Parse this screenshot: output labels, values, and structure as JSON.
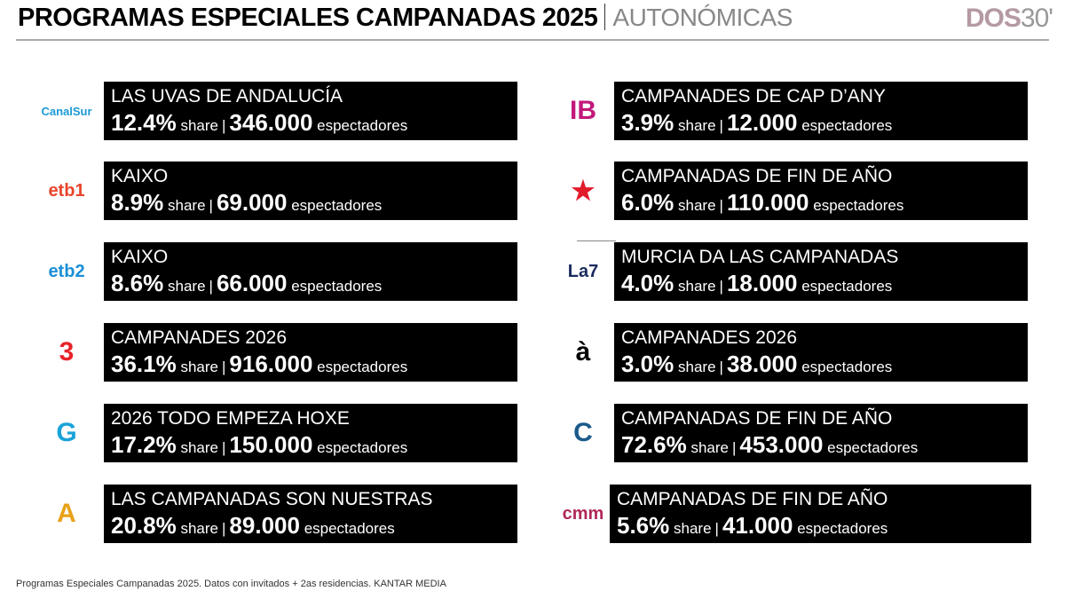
{
  "header": {
    "title": "PROGRAMAS ESPECIALES CAMPANADAS 2025",
    "subtitle": "AUTONÓMICAS",
    "brand_a": "DOS",
    "brand_b": "30'"
  },
  "labels": {
    "share": "share",
    "separator": "|",
    "viewers": "espectadores"
  },
  "left": [
    {
      "logo": "CanalSur",
      "logo_color": "#1a9ad6",
      "program": "LAS UVAS DE ANDALUCÍA",
      "share": "12.4%",
      "viewers": "346.000"
    },
    {
      "logo": "etb1",
      "logo_color": "#e8452c",
      "program": "KAIXO",
      "share": "8.9%",
      "viewers": "69.000"
    },
    {
      "logo": "etb2",
      "logo_color": "#1a8fd6",
      "program": "KAIXO",
      "share": "8.6%",
      "viewers": "66.000"
    },
    {
      "logo": "3",
      "logo_color": "#e8232a",
      "program": "CAMPANADES 2026",
      "share": "36.1%",
      "viewers": "916.000"
    },
    {
      "logo": "G",
      "logo_color": "#1aa3d9",
      "program": "2026 TODO EMPEZA HOXE",
      "share": "17.2%",
      "viewers": "150.000"
    },
    {
      "logo": "A",
      "logo_color": "#e8a21a",
      "program": "LAS CAMPANADAS SON NUESTRAS",
      "share": "20.8%",
      "viewers": "89.000"
    }
  ],
  "right": [
    {
      "logo": "IB",
      "logo_color": "#c2187a",
      "program": "CAMPANADES DE CAP D’ANY",
      "share": "3.9%",
      "viewers": "12.000"
    },
    {
      "logo": "★",
      "logo_color": "#e21b2b",
      "program": "CAMPANADAS DE FIN DE AÑO",
      "share": "6.0%",
      "viewers": "110.000"
    },
    {
      "logo": "La7",
      "logo_color": "#1b2a5e",
      "program": "MURCIA DA LAS CAMPANADAS",
      "share": "4.0%",
      "viewers": "18.000"
    },
    {
      "logo": "à",
      "logo_color": "#000000",
      "program": "CAMPANADES 2026",
      "share": "3.0%",
      "viewers": "38.000"
    },
    {
      "logo": "C",
      "logo_color": "#1a5a8a",
      "program": "CAMPANADAS DE FIN DE AÑO",
      "share": "72.6%",
      "viewers": "453.000"
    },
    {
      "logo": "cmm",
      "logo_color": "#b0285a",
      "program": "CAMPANADAS DE FIN DE AÑO",
      "share": "5.6%",
      "viewers": "41.000"
    }
  ],
  "footer": "Programas Especiales Campanadas 2025. Datos con invitados + 2as residencias. KANTAR MEDIA"
}
